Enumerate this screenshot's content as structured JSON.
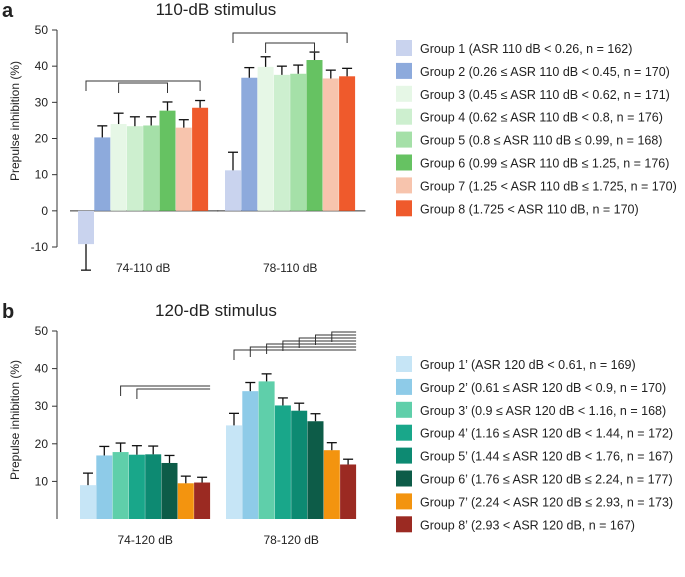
{
  "chart_data": [
    {
      "panel": "a",
      "type": "bar",
      "title": "110-dB stimulus",
      "ylabel": "Prepulse inhibition (%)",
      "xlabel": "",
      "ylim": [
        -10,
        50
      ],
      "yticks": [
        "-10",
        "0",
        "10",
        "20",
        "30",
        "40",
        "50"
      ],
      "categories": [
        "74-110 dB",
        "78-110 dB"
      ],
      "series": [
        {
          "name": "Group 1 (ASR 110 dB < 0.26, n = 162)",
          "color": "#c9d3ee",
          "values": [
            -9.2,
            11.2
          ],
          "errors": [
            7.2,
            5.0
          ]
        },
        {
          "name": "Group 2 (0.26 ≤ ASR 110 dB < 0.45, n = 170)",
          "color": "#8daadc",
          "values": [
            20.3,
            36.8
          ],
          "errors": [
            3.2,
            2.8
          ]
        },
        {
          "name": "Group 3 (0.45 ≤ ASR 110 dB < 0.62, n = 171)",
          "color": "#e6f7e6",
          "values": [
            24.0,
            39.8
          ],
          "errors": [
            3.0,
            2.8
          ]
        },
        {
          "name": "Group 4 (0.62 ≤ ASR 110 dB < 0.8, n = 176)",
          "color": "#cdefcf",
          "values": [
            23.4,
            37.6
          ],
          "errors": [
            2.6,
            2.4
          ]
        },
        {
          "name": "Group 5 (0.8 ≤ ASR 110 dB ≤ 0.99, n = 168)",
          "color": "#a5e0a8",
          "values": [
            23.6,
            37.9
          ],
          "errors": [
            2.4,
            2.4
          ]
        },
        {
          "name": "Group 6 (0.99 ≤ ASR 110 dB ≤ 1.25, n = 176)",
          "color": "#66c262",
          "values": [
            27.7,
            41.7
          ],
          "errors": [
            2.4,
            2.2
          ]
        },
        {
          "name": "Group 7 (1.25 < ASR 110 dB ≤ 1.725, n = 170)",
          "color": "#f7c4ad",
          "values": [
            23.0,
            36.6
          ],
          "errors": [
            2.2,
            2.3
          ]
        },
        {
          "name": "Group 8 (1.725 < ASR 110 dB, n = 170)",
          "color": "#ef5a2c",
          "values": [
            28.5,
            37.2
          ],
          "errors": [
            2.0,
            2.2
          ]
        }
      ]
    },
    {
      "panel": "b",
      "type": "bar",
      "title": "120-dB stimulus",
      "ylabel": "Prepulse inhibition (%)",
      "xlabel": "",
      "ylim": [
        0,
        50
      ],
      "yticks": [
        "10",
        "20",
        "30",
        "40",
        "50"
      ],
      "categories": [
        "74-120 dB",
        "78-120 dB"
      ],
      "series": [
        {
          "name": "Group 1’ (ASR 120 dB < 0.61, n = 169)",
          "color": "#c6e5f6",
          "values": [
            9.0,
            24.9
          ],
          "errors": [
            3.2,
            3.2
          ]
        },
        {
          "name": "Group 2’ (0.61 ≤ ASR 120 dB < 0.9, n = 170)",
          "color": "#8ecbe8",
          "values": [
            16.9,
            34.0
          ],
          "errors": [
            2.4,
            2.3
          ]
        },
        {
          "name": "Group 3’ (0.9 ≤ ASR 120 dB < 1.16, n = 168)",
          "color": "#5fcfaa",
          "values": [
            17.8,
            36.6
          ],
          "errors": [
            2.4,
            2.0
          ]
        },
        {
          "name": "Group 4’ (1.16 ≤ ASR 120 dB < 1.44, n = 172)",
          "color": "#19a78a",
          "values": [
            17.1,
            30.2
          ],
          "errors": [
            2.4,
            2.0
          ]
        },
        {
          "name": "Group 5’ (1.44 ≤ ASR 120 dB < 1.76, n = 167)",
          "color": "#0d8a72",
          "values": [
            17.2,
            28.8
          ],
          "errors": [
            2.2,
            2.0
          ]
        },
        {
          "name": "Group 6’ (1.76 ≤ ASR 120 dB ≤ 2.24, n = 177)",
          "color": "#0d5c48",
          "values": [
            14.9,
            26.0
          ],
          "errors": [
            2.0,
            2.0
          ]
        },
        {
          "name": "Group 7’ (2.24 < ASR 120 dB ≤ 2.93, n = 173)",
          "color": "#f3940f",
          "values": [
            9.5,
            18.3
          ],
          "errors": [
            1.9,
            2.0
          ]
        },
        {
          "name": "Group 8’ (2.93 < ASR 120 dB, n = 167)",
          "color": "#9b2a22",
          "values": [
            9.7,
            14.5
          ],
          "errors": [
            1.4,
            1.4
          ]
        }
      ]
    }
  ]
}
